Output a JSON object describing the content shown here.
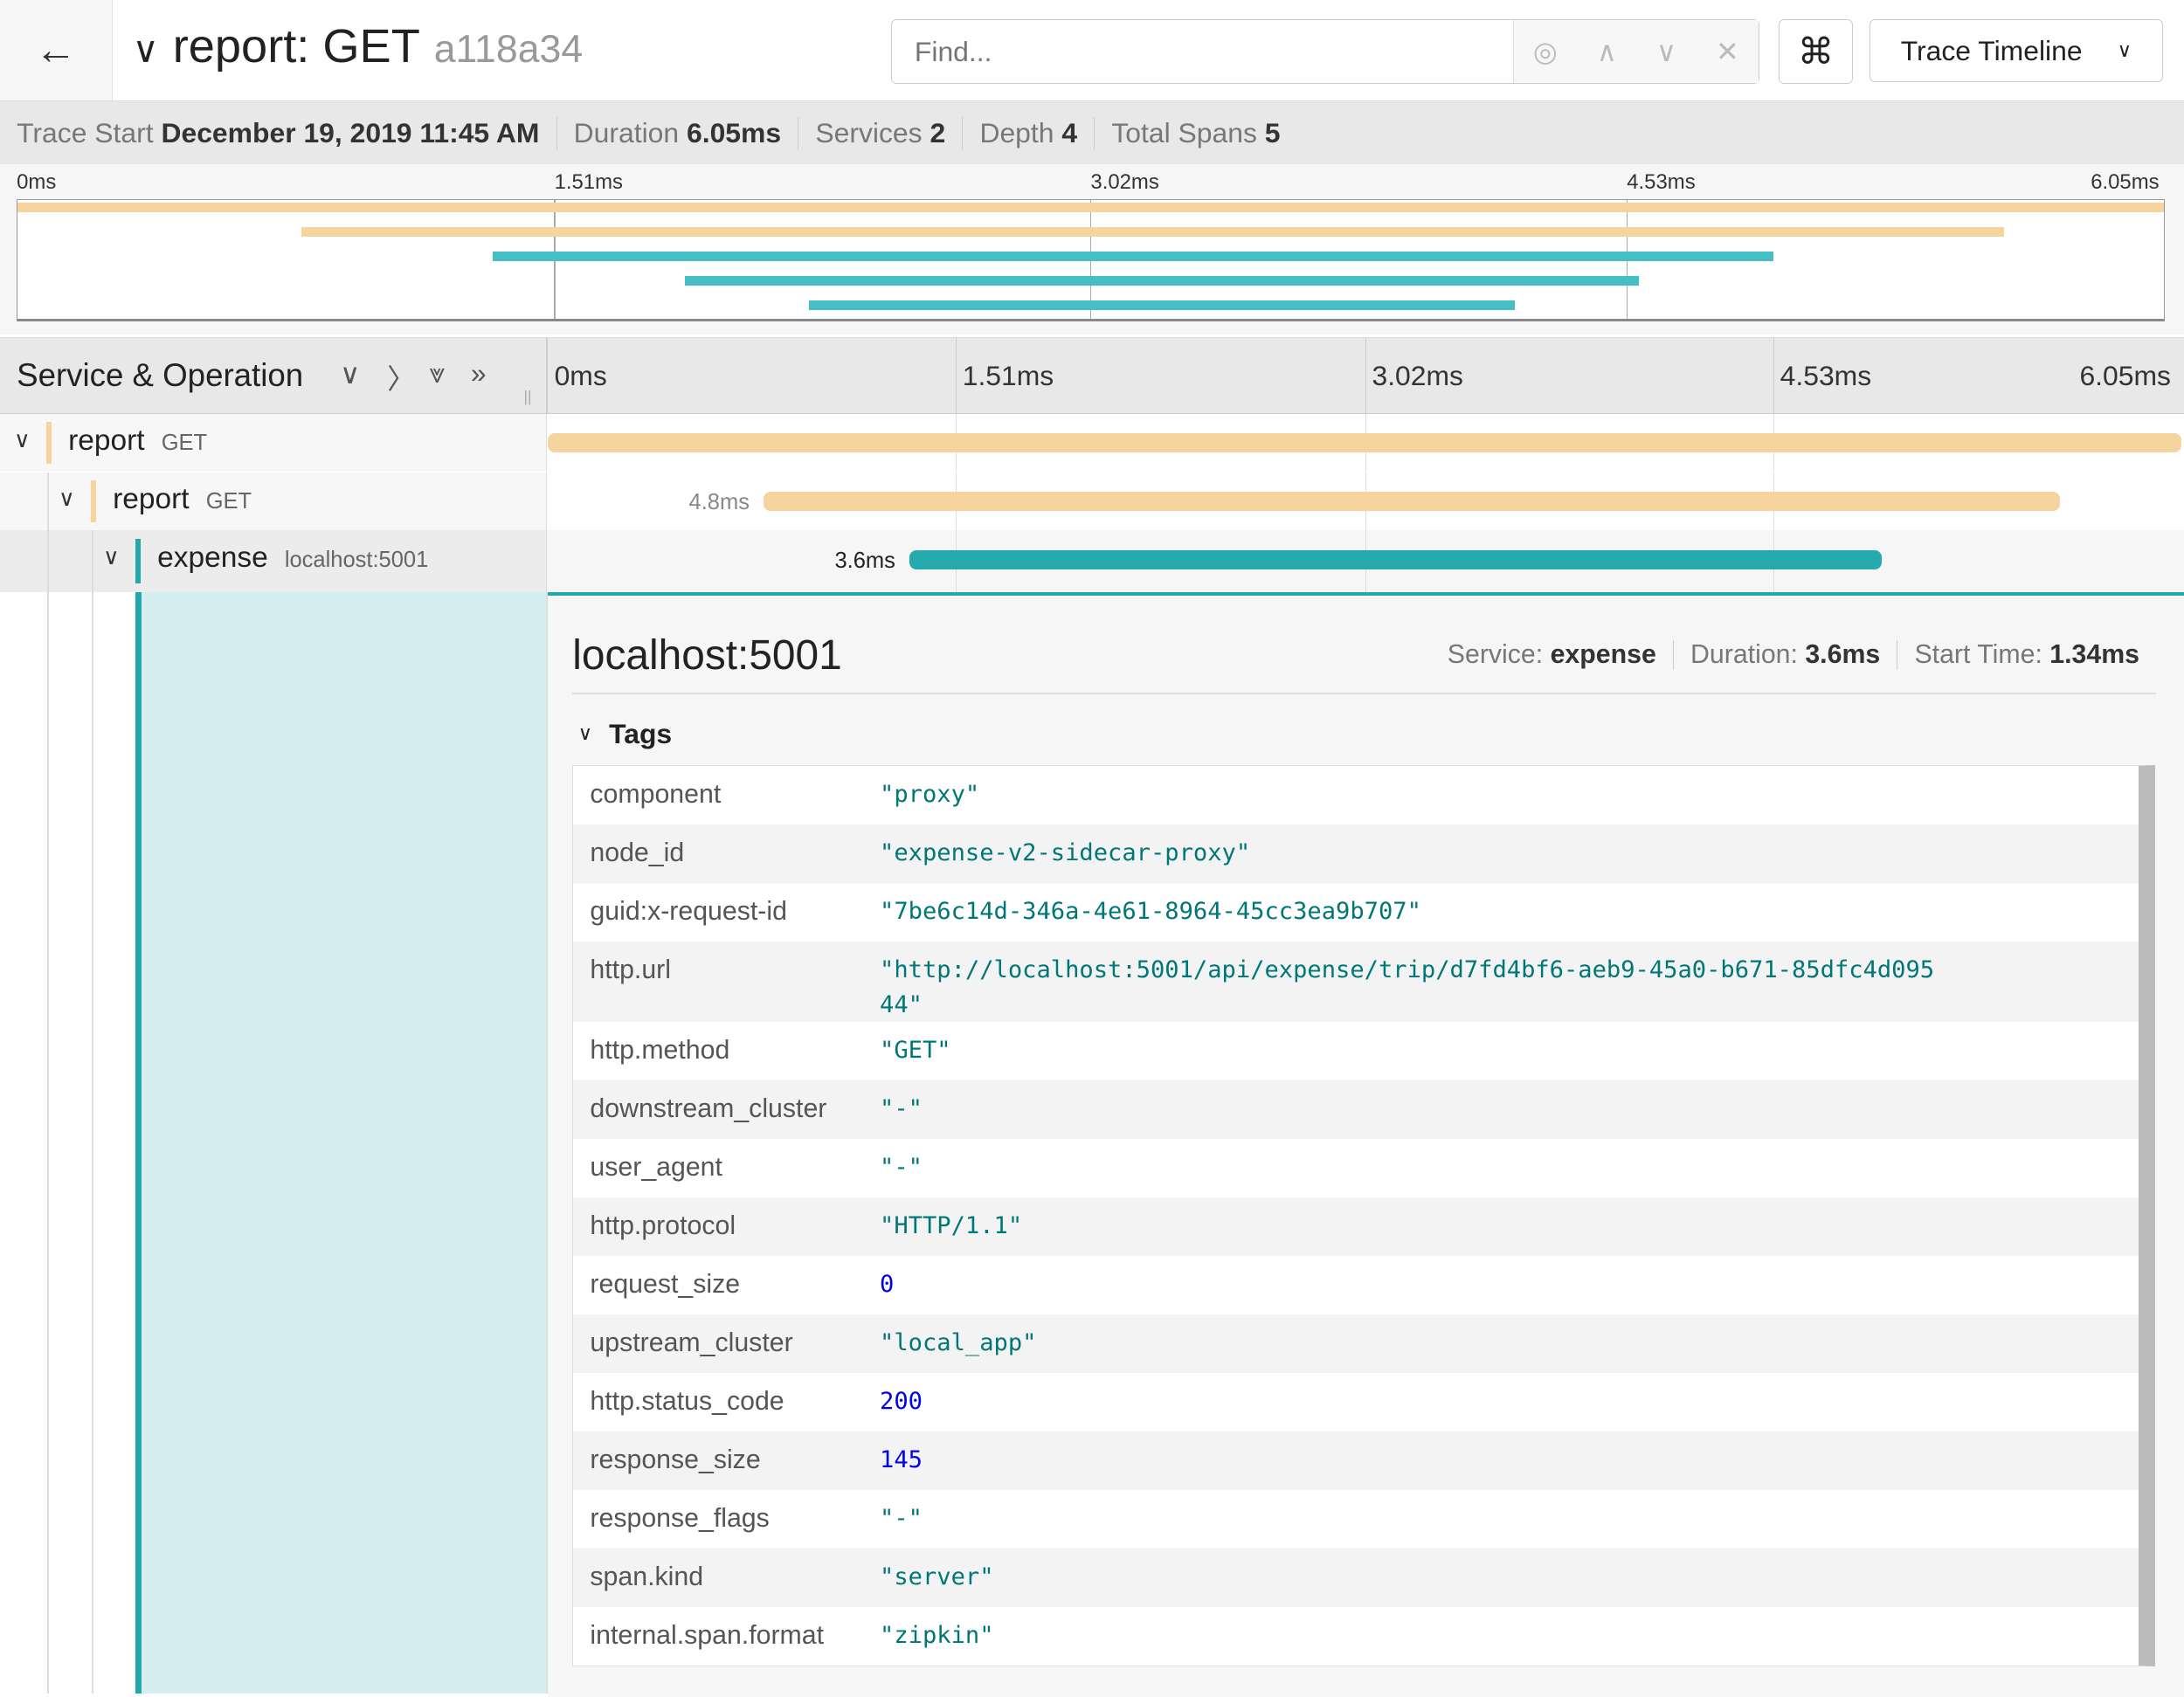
{
  "header": {
    "back_icon": "arrow-left-icon",
    "collapse_icon": "chevron-down-icon",
    "title": "report: GET",
    "trace_id": "a118a34",
    "find_placeholder": "Find...",
    "find_controls": [
      "locate-icon",
      "up-icon",
      "down-icon",
      "close-icon"
    ],
    "shortcut_icon": "⌘",
    "view_select": "Trace Timeline"
  },
  "summary": [
    {
      "label": "Trace Start",
      "value": "December 19, 2019 11:45 AM"
    },
    {
      "label": "Duration",
      "value": "6.05ms"
    },
    {
      "label": "Services",
      "value": "2"
    },
    {
      "label": "Depth",
      "value": "4"
    },
    {
      "label": "Total Spans",
      "value": "5"
    }
  ],
  "ticks": [
    "0ms",
    "1.51ms",
    "3.02ms",
    "4.53ms",
    "6.05ms"
  ],
  "colors": {
    "report": "#f5d59d",
    "expense": "#45bfc4",
    "expense_dark": "#26aaad",
    "selected": "#20a8aa"
  },
  "minimap_spans_ms": [
    {
      "service": "report",
      "start": 0,
      "end": 6.05
    },
    {
      "service": "report",
      "start": 0.8,
      "end": 5.6
    },
    {
      "service": "expense",
      "start": 1.34,
      "end": 4.95
    },
    {
      "service": "expense",
      "start": 1.88,
      "end": 4.57
    },
    {
      "service": "expense",
      "start": 2.23,
      "end": 4.22
    }
  ],
  "table_header": {
    "title": "Service & Operation"
  },
  "rows": [
    {
      "service": "report",
      "operation": "GET",
      "start_ms": 0,
      "duration_ms": 6.05,
      "duration_label": ""
    },
    {
      "service": "report",
      "operation": "GET",
      "start_ms": 0.8,
      "duration_ms": 4.8,
      "duration_label": "4.8ms"
    },
    {
      "service": "expense",
      "operation": "localhost:5001",
      "start_ms": 1.34,
      "duration_ms": 3.6,
      "duration_label": "3.6ms"
    }
  ],
  "detail": {
    "title": "localhost:5001",
    "meta": [
      {
        "label": "Service:",
        "value": "expense"
      },
      {
        "label": "Duration:",
        "value": "3.6ms"
      },
      {
        "label": "Start Time:",
        "value": "1.34ms"
      }
    ],
    "tags_label": "Tags",
    "tags": [
      {
        "key": "component",
        "value": "\"proxy\""
      },
      {
        "key": "node_id",
        "value": "\"expense-v2-sidecar-proxy\""
      },
      {
        "key": "guid:x-request-id",
        "value": "\"7be6c14d-346a-4e61-8964-45cc3ea9b707\""
      },
      {
        "key": "http.url",
        "value": "\"http://localhost:5001/api/expense/trip/d7fd4bf6-aeb9-45a0-b671-85dfc4d09544\""
      },
      {
        "key": "http.method",
        "value": "\"GET\""
      },
      {
        "key": "downstream_cluster",
        "value": "\"-\""
      },
      {
        "key": "user_agent",
        "value": "\"-\""
      },
      {
        "key": "http.protocol",
        "value": "\"HTTP/1.1\""
      },
      {
        "key": "request_size",
        "value": "0"
      },
      {
        "key": "upstream_cluster",
        "value": "\"local_app\""
      },
      {
        "key": "http.status_code",
        "value": "200"
      },
      {
        "key": "response_size",
        "value": "145"
      },
      {
        "key": "response_flags",
        "value": "\"-\""
      },
      {
        "key": "span.kind",
        "value": "\"server\""
      },
      {
        "key": "internal.span.format",
        "value": "\"zipkin\""
      }
    ]
  }
}
